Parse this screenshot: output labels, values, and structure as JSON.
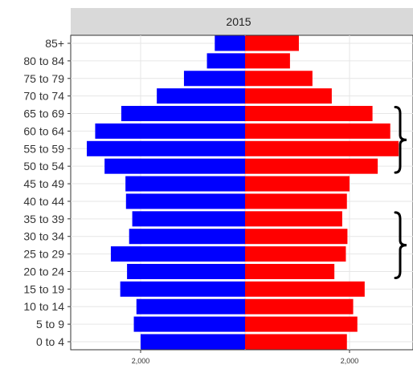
{
  "chart_data": {
    "type": "bar",
    "orientation": "horizontal",
    "layout": "population-pyramid",
    "facet_title": "2015",
    "categories": [
      "0 to 4",
      "5 to 9",
      "10 to 14",
      "15 to 19",
      "20 to 24",
      "25 to 29",
      "30 to 34",
      "35 to 39",
      "40 to 44",
      "45 to 49",
      "50 to 54",
      "55 to 59",
      "60 to 64",
      "65 to 69",
      "70 to 74",
      "75 to 79",
      "80 to 84",
      "85+"
    ],
    "series": [
      {
        "side": "left",
        "color": "#0000ff",
        "values": [
          2000,
          2130,
          2080,
          2390,
          2260,
          2570,
          2220,
          2160,
          2280,
          2290,
          2690,
          3030,
          2870,
          2370,
          1690,
          1170,
          730,
          580
        ]
      },
      {
        "side": "right",
        "color": "#ff0000",
        "values": [
          1950,
          2150,
          2070,
          2290,
          1710,
          1930,
          1960,
          1860,
          1950,
          2000,
          2540,
          2940,
          2780,
          2440,
          1660,
          1290,
          860,
          1030
        ]
      }
    ],
    "xlim": [
      -3000,
      3200
    ],
    "xticks": [
      -2000,
      2000
    ],
    "xtick_labels": [
      "2,000",
      "2,000"
    ],
    "xlabel": "",
    "ylabel": "",
    "grid": true,
    "annotations": [
      {
        "type": "brace",
        "side": "right",
        "from_category": "50 to 54",
        "to_category": "65 to 69"
      },
      {
        "type": "brace",
        "side": "right",
        "from_category": "20 to 24",
        "to_category": "35 to 39"
      }
    ]
  }
}
